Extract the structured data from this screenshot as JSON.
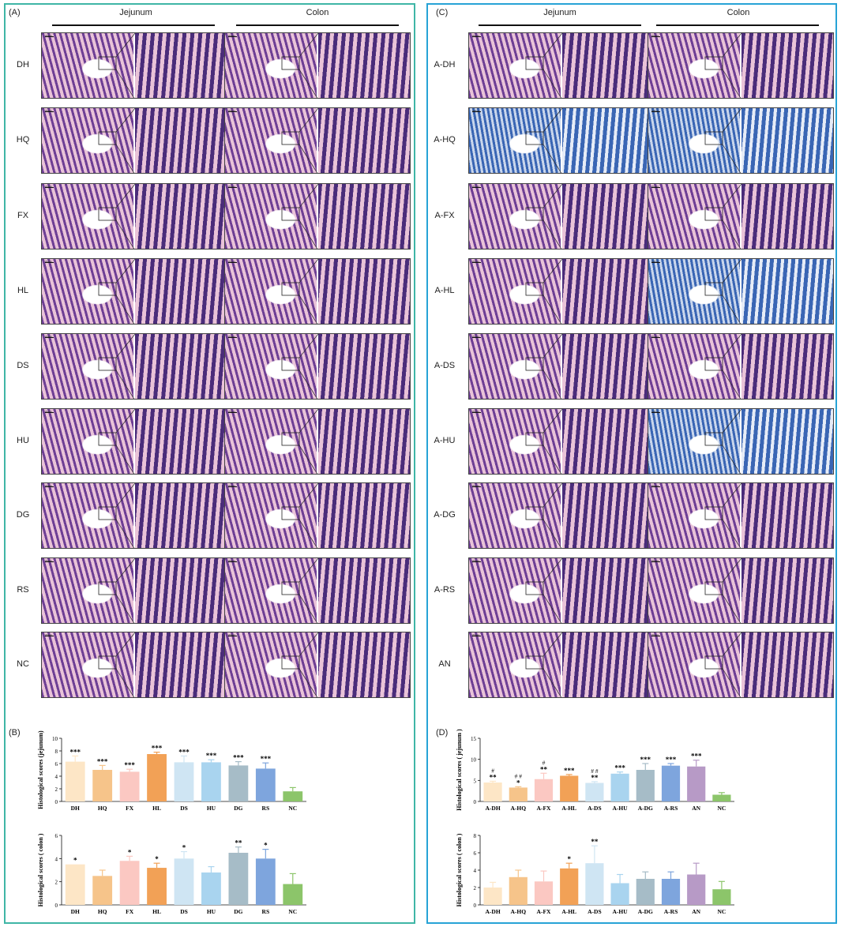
{
  "panels": {
    "A": "(A)",
    "B": "(B)",
    "C": "(C)",
    "D": "(D)"
  },
  "images_left": {
    "col_headers": [
      "Jejunum",
      "Colon"
    ],
    "rows": [
      "DH",
      "HQ",
      "FX",
      "HL",
      "DS",
      "HU",
      "DG",
      "RS",
      "NC"
    ]
  },
  "images_right": {
    "col_headers": [
      "Jejunum",
      "Colon"
    ],
    "rows": [
      "A-DH",
      "A-HQ",
      "A-FX",
      "A-HL",
      "A-DS",
      "A-HU",
      "A-DG",
      "A-RS",
      "AN"
    ]
  },
  "scale_bar_label": "200μm",
  "stain_colors": {
    "he_pink": "#e9c3d8",
    "he_purple": "#6e3f95",
    "he_deep": "#4a2c7a",
    "ab_blue": "#3a66b4",
    "ab_pale": "#c9d6ec"
  },
  "chart_data": [
    {
      "id": "B-top",
      "type": "bar",
      "ylabel": "Histological scores (jejunum)",
      "ylim": [
        0,
        10
      ],
      "yticks": [
        0,
        2,
        4,
        6,
        8,
        10
      ],
      "categories": [
        "DH",
        "HQ",
        "FX",
        "HL",
        "DS",
        "HU",
        "DG",
        "RS",
        "NC"
      ],
      "values": [
        6.3,
        5.0,
        4.7,
        7.5,
        6.2,
        6.2,
        5.7,
        5.2,
        1.6
      ],
      "errors": [
        0.9,
        0.7,
        0.4,
        0.3,
        1.0,
        0.4,
        0.6,
        0.9,
        0.6
      ],
      "marks": [
        "***",
        "***",
        "***",
        "***",
        "***",
        "***",
        "***",
        "***",
        ""
      ],
      "marks2": [
        "",
        "",
        "",
        "",
        "",
        "",
        "",
        "",
        ""
      ],
      "colors": [
        "#fde6c6",
        "#f6c48a",
        "#fbc8c2",
        "#f2a156",
        "#cfe5f3",
        "#a9d4ef",
        "#a6bcc7",
        "#7ea5dd",
        "#8cc56a"
      ]
    },
    {
      "id": "B-bottom",
      "type": "bar",
      "ylabel": "Histological scores ( colon )",
      "ylim": [
        0,
        6
      ],
      "yticks": [
        0,
        2,
        4,
        6
      ],
      "categories": [
        "DH",
        "HQ",
        "FX",
        "HL",
        "DS",
        "HU",
        "DG",
        "RS",
        "NC"
      ],
      "values": [
        3.5,
        2.5,
        3.8,
        3.2,
        4.0,
        2.8,
        4.5,
        4.0,
        1.8
      ],
      "errors": [
        0.0,
        0.5,
        0.4,
        0.4,
        0.6,
        0.5,
        0.5,
        0.8,
        0.9
      ],
      "marks": [
        "*",
        "",
        "*",
        "*",
        "*",
        "",
        "**",
        "*",
        ""
      ],
      "marks2": [
        "",
        "",
        "",
        "",
        "",
        "",
        "",
        "",
        ""
      ],
      "colors": [
        "#fde6c6",
        "#f6c48a",
        "#fbc8c2",
        "#f2a156",
        "#cfe5f3",
        "#a9d4ef",
        "#a6bcc7",
        "#7ea5dd",
        "#8cc56a"
      ]
    },
    {
      "id": "D-top",
      "type": "bar",
      "ylabel": "Histological scores ( jejunum )",
      "ylim": [
        0,
        15
      ],
      "yticks": [
        0,
        5,
        10,
        15
      ],
      "categories": [
        "A-DH",
        "A-HQ",
        "A-FX",
        "A-HL",
        "A-DS",
        "A-HU",
        "A-DG",
        "A-RS",
        "AN",
        "NC"
      ],
      "values": [
        4.5,
        3.3,
        5.3,
        6.1,
        4.4,
        6.6,
        7.5,
        8.5,
        8.3,
        1.6
      ],
      "errors": [
        0.3,
        0.2,
        1.4,
        0.3,
        0.3,
        0.4,
        1.5,
        0.5,
        1.5,
        0.5
      ],
      "marks": [
        "**",
        "*",
        "**",
        "***",
        "**",
        "***",
        "***",
        "***",
        "***",
        ""
      ],
      "marks2": [
        "#",
        "# #",
        "#",
        "",
        "# #",
        "",
        "",
        "",
        "",
        ""
      ],
      "colors": [
        "#fde6c6",
        "#f6c48a",
        "#fbc8c2",
        "#f2a156",
        "#cfe5f3",
        "#a9d4ef",
        "#a6bcc7",
        "#7ea5dd",
        "#b79ac6",
        "#8cc56a"
      ]
    },
    {
      "id": "D-bottom",
      "type": "bar",
      "ylabel": "Histological scores ( colon )",
      "ylim": [
        0,
        8
      ],
      "yticks": [
        0,
        2,
        4,
        6,
        8
      ],
      "categories": [
        "A-DH",
        "A-HQ",
        "A-FX",
        "A-HL",
        "A-DS",
        "A-HU",
        "A-DG",
        "A-RS",
        "AN",
        "NC"
      ],
      "values": [
        2.0,
        3.2,
        2.7,
        4.2,
        4.8,
        2.5,
        3.0,
        3.0,
        3.5,
        1.8
      ],
      "errors": [
        0.6,
        0.8,
        1.2,
        0.6,
        2.0,
        1.0,
        0.8,
        0.8,
        1.3,
        0.9
      ],
      "marks": [
        "",
        "",
        "",
        "*",
        "**",
        "",
        "",
        "",
        "",
        ""
      ],
      "marks2": [
        "",
        "",
        "",
        "",
        "",
        "",
        "",
        "",
        "",
        ""
      ],
      "colors": [
        "#fde6c6",
        "#f6c48a",
        "#fbc8c2",
        "#f2a156",
        "#cfe5f3",
        "#a9d4ef",
        "#a6bcc7",
        "#7ea5dd",
        "#b79ac6",
        "#8cc56a"
      ]
    }
  ]
}
